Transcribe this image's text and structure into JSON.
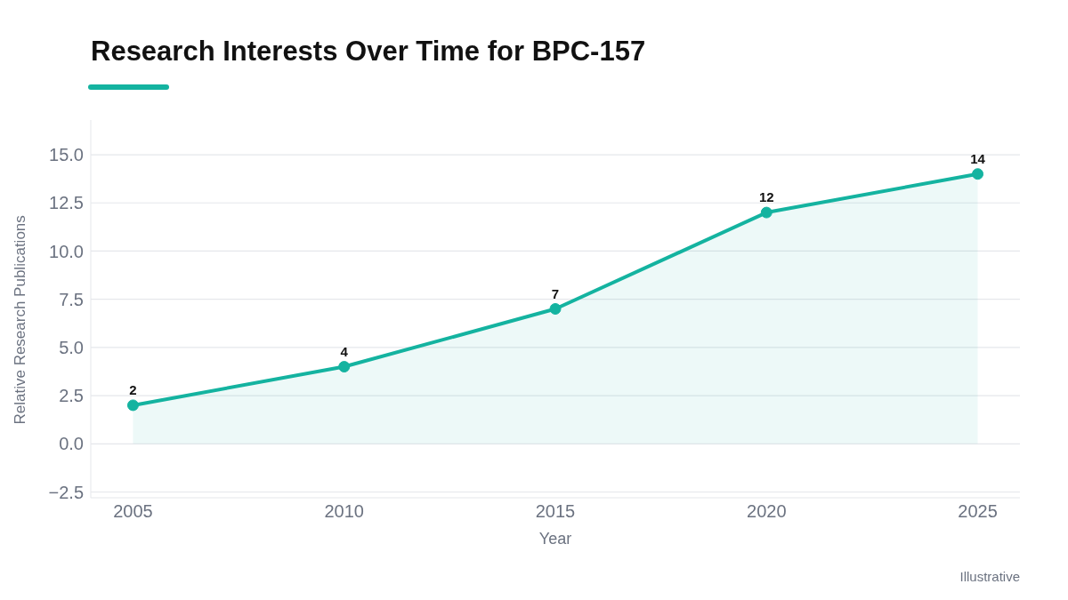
{
  "chart_data": {
    "type": "area",
    "title": "Research Interests Over Time for BPC-157",
    "xlabel": "Year",
    "ylabel": "Relative Research Publications",
    "annotations": [
      "Illustrative"
    ],
    "x": [
      2005,
      2010,
      2015,
      2020,
      2025
    ],
    "series": [
      {
        "color": "#14b3a0",
        "values": [
          2,
          4,
          7,
          12,
          14
        ]
      }
    ],
    "xlim": [
      2004,
      2026
    ],
    "xticks": [
      2005,
      2010,
      2015,
      2020,
      2025
    ],
    "ylim": [
      -2.8,
      16.8
    ],
    "yticks": [
      {
        "value": -2.5,
        "label": "−2.5"
      },
      {
        "value": 0,
        "label": "0.0"
      },
      {
        "value": 2.5,
        "label": "2.5"
      },
      {
        "value": 5,
        "label": "5.0"
      },
      {
        "value": 7.5,
        "label": "7.5"
      },
      {
        "value": 10,
        "label": "10.0"
      },
      {
        "value": 12.5,
        "label": "12.5"
      },
      {
        "value": 15,
        "label": "15.0"
      }
    ],
    "grid": "y",
    "marker": "circle",
    "data_labels": true
  }
}
